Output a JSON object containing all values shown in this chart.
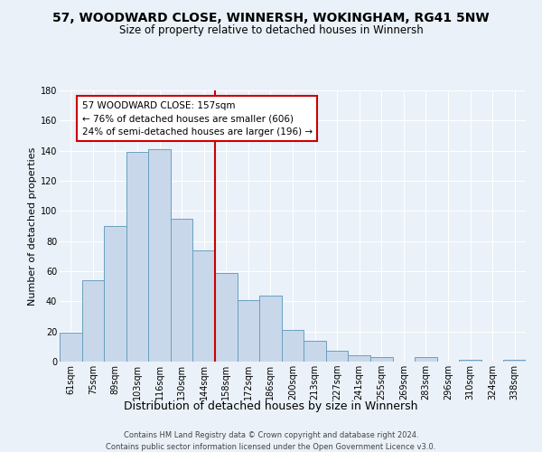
{
  "title": "57, WOODWARD CLOSE, WINNERSH, WOKINGHAM, RG41 5NW",
  "subtitle": "Size of property relative to detached houses in Winnersh",
  "xlabel": "Distribution of detached houses by size in Winnersh",
  "ylabel": "Number of detached properties",
  "footnote1": "Contains HM Land Registry data © Crown copyright and database right 2024.",
  "footnote2": "Contains public sector information licensed under the Open Government Licence v3.0.",
  "bar_labels": [
    "61sqm",
    "75sqm",
    "89sqm",
    "103sqm",
    "116sqm",
    "130sqm",
    "144sqm",
    "158sqm",
    "172sqm",
    "186sqm",
    "200sqm",
    "213sqm",
    "227sqm",
    "241sqm",
    "255sqm",
    "269sqm",
    "283sqm",
    "296sqm",
    "310sqm",
    "324sqm",
    "338sqm"
  ],
  "bar_values": [
    19,
    54,
    90,
    139,
    141,
    95,
    74,
    59,
    41,
    44,
    21,
    14,
    7,
    4,
    3,
    0,
    3,
    0,
    1,
    0,
    1
  ],
  "bar_color": "#c8d8ea",
  "bar_edge_color": "#6a9fc0",
  "vline_color": "#cc0000",
  "ylim": [
    0,
    180
  ],
  "yticks": [
    0,
    20,
    40,
    60,
    80,
    100,
    120,
    140,
    160,
    180
  ],
  "annotation_title": "57 WOODWARD CLOSE: 157sqm",
  "annotation_line1": "← 76% of detached houses are smaller (606)",
  "annotation_line2": "24% of semi-detached houses are larger (196) →",
  "annotation_box_color": "#ffffff",
  "annotation_box_edge_color": "#cc0000",
  "background_color": "#eaf1f8",
  "grid_color": "#ffffff",
  "title_fontsize": 10,
  "subtitle_fontsize": 8.5,
  "ylabel_fontsize": 8,
  "xlabel_fontsize": 9,
  "tick_fontsize": 7,
  "annotation_fontsize": 7.5,
  "footnote_fontsize": 6
}
